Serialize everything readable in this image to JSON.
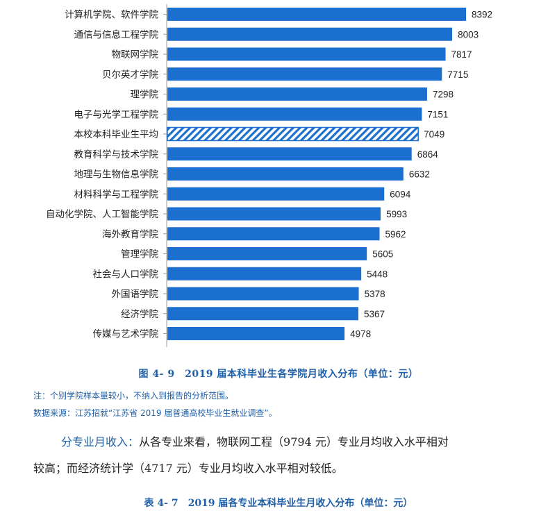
{
  "chart_data": {
    "type": "bar",
    "orientation": "horizontal",
    "categories": [
      "计算机学院、软件学院",
      "通信与信息工程学院",
      "物联网学院",
      "贝尔英才学院",
      "理学院",
      "电子与光学工程学院",
      "本校本科毕业生平均",
      "教育科学与技术学院",
      "地理与生物信息学院",
      "材料科学与工程学院",
      "自动化学院、人工智能学院",
      "海外教育学院",
      "管理学院",
      "社会与人口学院",
      "外国语学院",
      "经济学院",
      "传媒与艺术学院"
    ],
    "values": [
      8392,
      8003,
      7817,
      7715,
      7298,
      7151,
      7049,
      6864,
      6632,
      6094,
      5993,
      5962,
      5605,
      5448,
      5378,
      5367,
      4978
    ],
    "data_labels": [
      "8392",
      "8003",
      "7817",
      "7715",
      "7298",
      "7151",
      "7049",
      "6864",
      "6632",
      "6094",
      "5993",
      "5962",
      "5605",
      "5448",
      "5378",
      "5367",
      "4978"
    ],
    "highlight_category": "本校本科毕业生平均",
    "xlim": [
      0,
      9000
    ],
    "grid": false,
    "legend": "none",
    "bar_color": "#1a6fcf",
    "highlight_pattern": "diagonal-hatch",
    "title": "图 4- 9　2019 届本科毕业生各学院月收入分布（单位：元）"
  },
  "notes": {
    "note": "注：个别学院样本量较小，不纳入到报告的分析范围。",
    "source": "数据来源：江苏招就“江苏省 2019 届普通高校毕业生就业调查”。"
  },
  "paragraph": {
    "lead": "分专业月收入：",
    "line1_rest": "从各专业来看，物联网工程（9794 元）专业月均收入水平相对",
    "line2": "较高；而经济统计学（4717 元）专业月均收入水平相对较低。"
  },
  "table_caption": "表 4- 7　2019 届各专业本科毕业生月收入分布（单位：元）",
  "colors": {
    "accent": "#1f5fa8",
    "bar": "#1a6fcf",
    "text": "#222222"
  }
}
